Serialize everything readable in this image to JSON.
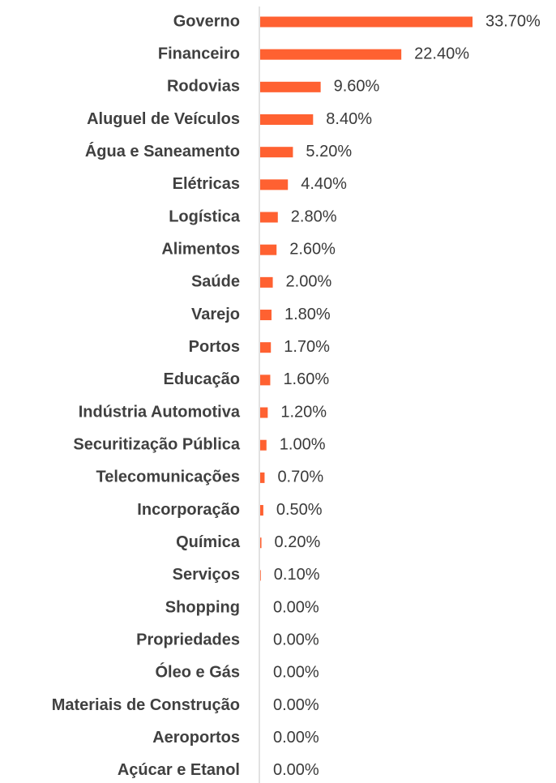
{
  "chart_data": {
    "type": "bar",
    "orientation": "horizontal",
    "color": "#ff6131",
    "categories": [
      "Governo",
      "Financeiro",
      "Rodovias",
      "Aluguel de Veículos",
      "Água e Saneamento",
      "Elétricas",
      "Logística",
      "Alimentos",
      "Saúde",
      "Varejo",
      "Portos",
      "Educação",
      "Indústria Automotiva",
      "Securitização Pública",
      "Telecomunicações",
      "Incorporação",
      "Química",
      "Serviços",
      "Shopping",
      "Propriedades",
      "Óleo e Gás",
      "Materiais de Construção",
      "Aeroportos",
      "Açúcar e Etanol"
    ],
    "values": [
      33.7,
      22.4,
      9.6,
      8.4,
      5.2,
      4.4,
      2.8,
      2.6,
      2.0,
      1.8,
      1.7,
      1.6,
      1.2,
      1.0,
      0.7,
      0.5,
      0.2,
      0.1,
      0,
      0,
      0,
      0,
      0,
      0
    ],
    "value_labels": [
      "33.70%",
      "22.40%",
      "9.60%",
      "8.40%",
      "5.20%",
      "4.40%",
      "2.80%",
      "2.60%",
      "2.00%",
      "1.80%",
      "1.70%",
      "1.60%",
      "1.20%",
      "1.00%",
      "0.70%",
      "0.50%",
      "0.20%",
      "0.10%",
      "0.00%",
      "0.00%",
      "0.00%",
      "0.00%",
      "0.00%",
      "0.00%"
    ]
  }
}
